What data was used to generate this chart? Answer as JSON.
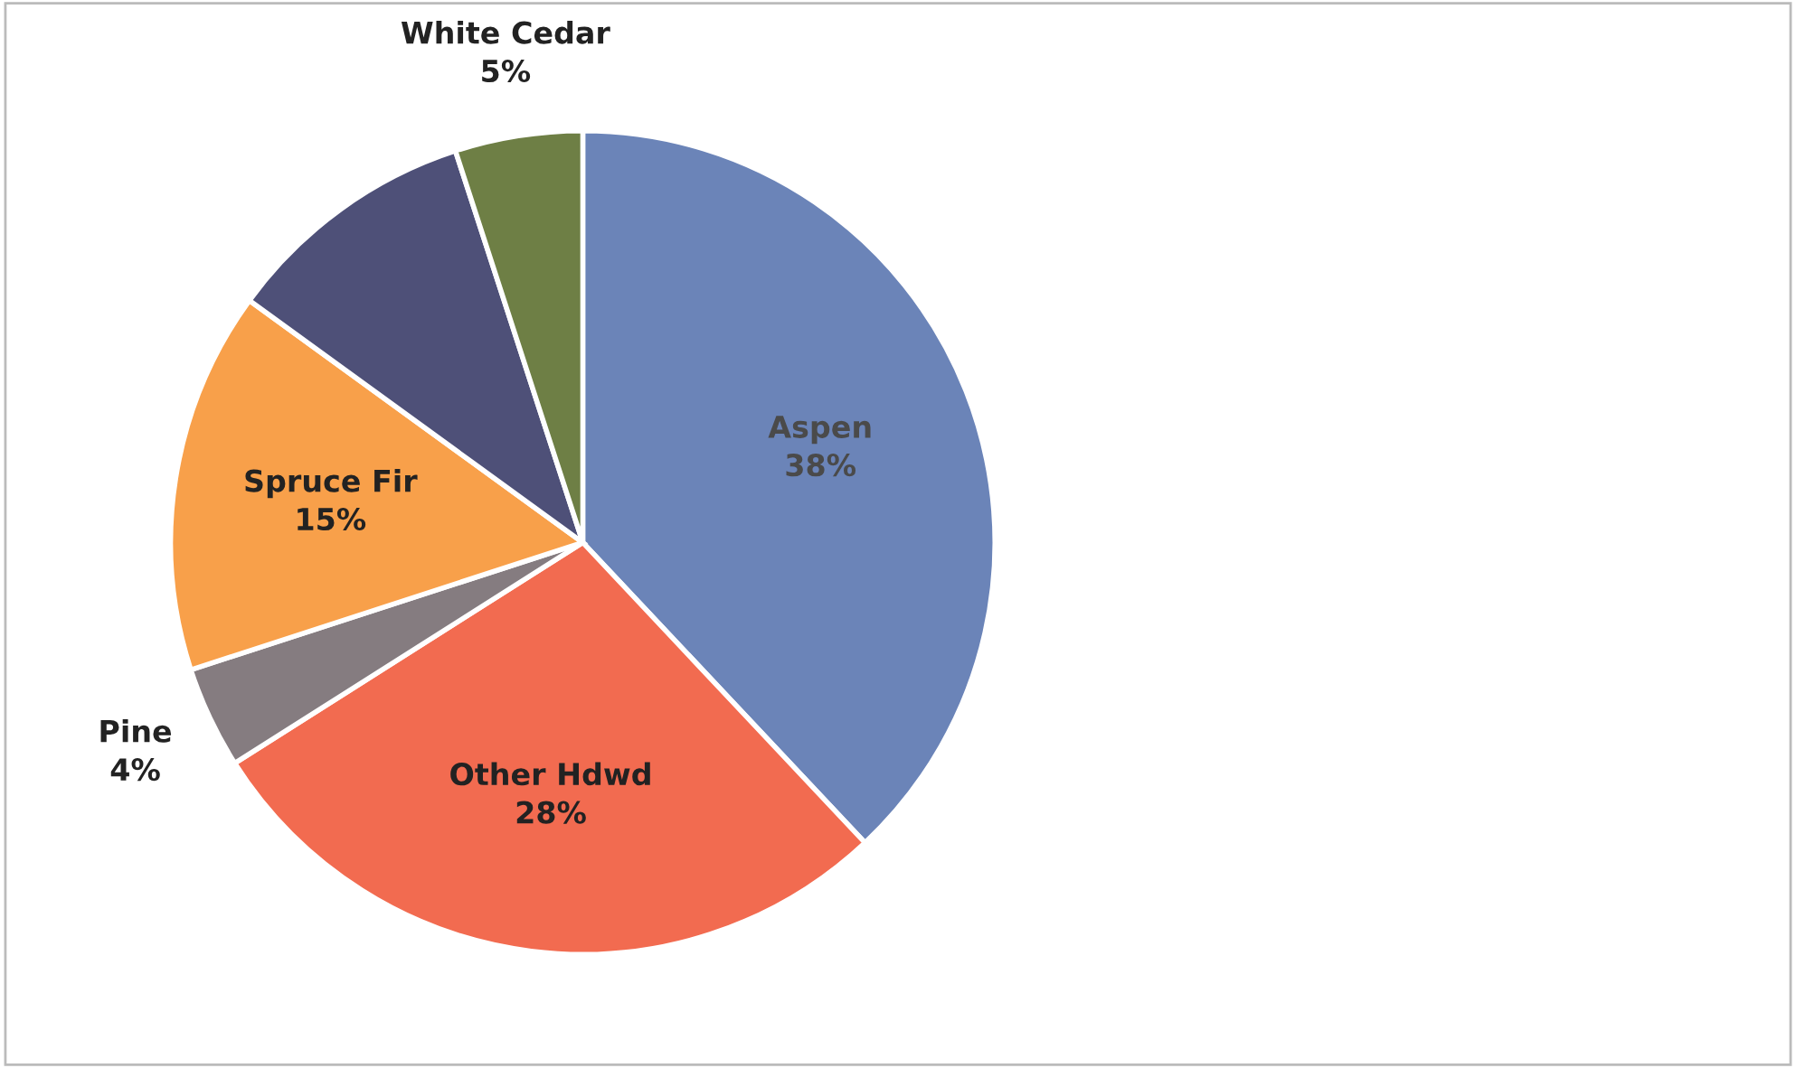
{
  "chart_data": {
    "type": "pie",
    "categories": [
      "Aspen",
      "Other Hdwd",
      "Pine",
      "Spruce Fir",
      null,
      "White Cedar"
    ],
    "values": [
      38,
      28,
      4,
      15,
      10,
      5
    ],
    "colors": [
      "#6b84b8",
      "#f26b50",
      "#857c80",
      "#f8a04a",
      "#4e5078",
      "#6e7f45"
    ],
    "value_labels": [
      "38%",
      "28%",
      "4%",
      "15%",
      null,
      "5%"
    ],
    "legend": false
  }
}
